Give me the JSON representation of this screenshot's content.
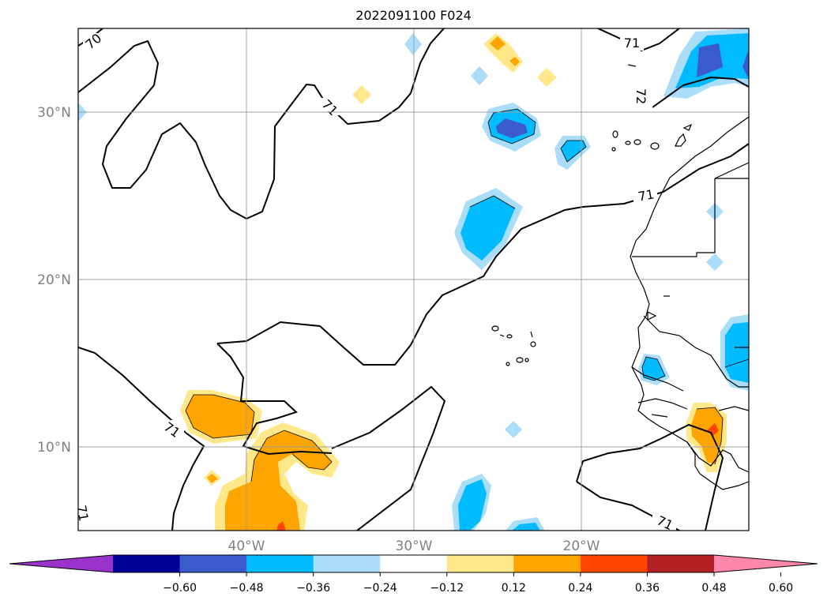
{
  "title": "2022091100 F024",
  "map": {
    "lon_range": [
      -50,
      -10
    ],
    "lat_range": [
      5,
      35
    ],
    "lat_ticks": [
      {
        "value": 30,
        "label": "30°N"
      },
      {
        "value": 20,
        "label": "20°N"
      },
      {
        "value": 10,
        "label": "10°N"
      }
    ],
    "lon_ticks": [
      {
        "value": -40,
        "label": "40°W"
      },
      {
        "value": -30,
        "label": "30°W"
      },
      {
        "value": -20,
        "label": "20°W"
      }
    ],
    "grid": true,
    "contour_labels": [
      "70",
      "71",
      "71",
      "71",
      "71",
      "72",
      "71",
      "71"
    ]
  },
  "colorbar": {
    "colors": [
      "#9933cc",
      "#000099",
      "#3a5bcc",
      "#00bbff",
      "#aaddf7",
      "#ffffff",
      "#ffe88a",
      "#ffa500",
      "#ff4500",
      "#b22222",
      "#ff88aa"
    ],
    "tick_labels": [
      "−0.60",
      "−0.48",
      "−0.36",
      "−0.24",
      "−0.12",
      "0.12",
      "0.24",
      "0.36",
      "0.48",
      "0.60"
    ],
    "extend": "both"
  }
}
